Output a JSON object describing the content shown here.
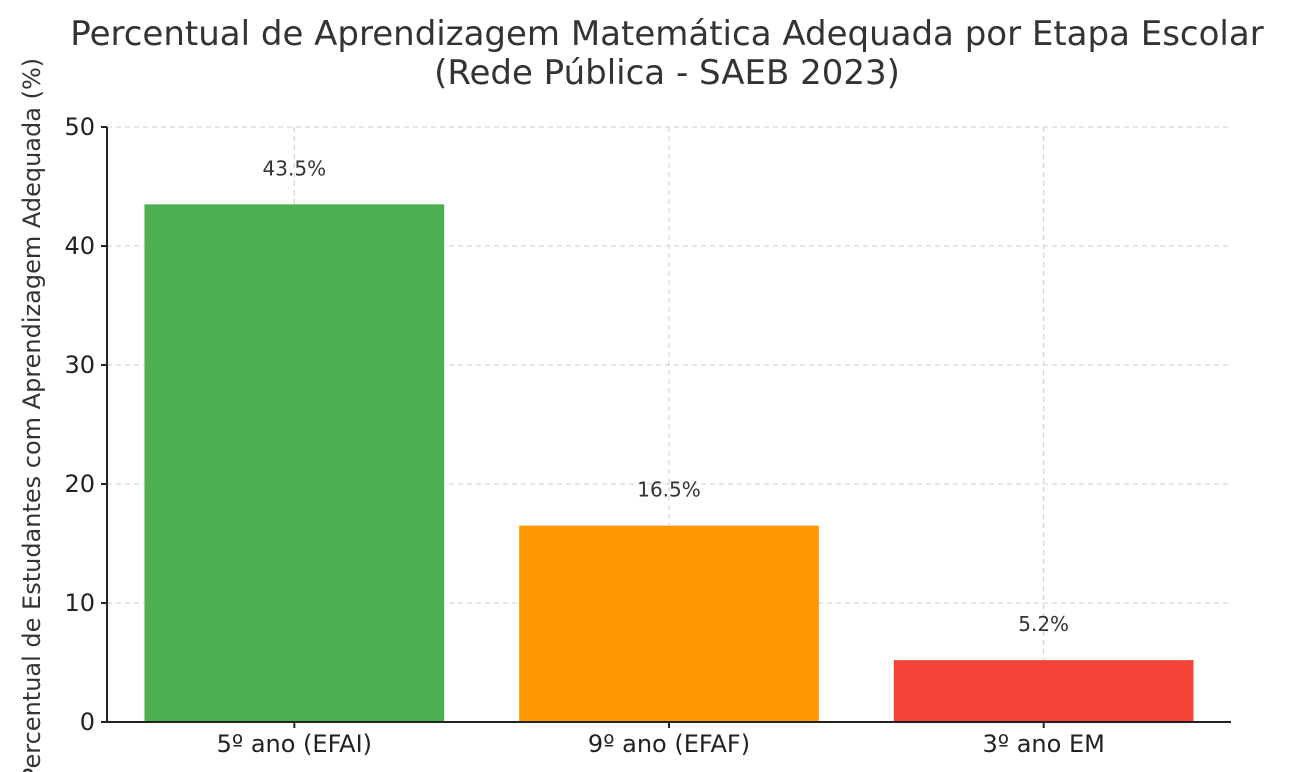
{
  "chart_data": {
    "type": "bar",
    "title": "Percentual de Aprendizagem Matemática Adequada por Etapa Escolar",
    "subtitle": "(Rede Pública - SAEB 2023)",
    "xlabel": "",
    "ylabel": "Percentual de Estudantes com Aprendizagem Adequada (%)",
    "categories": [
      "5º ano (EFAI)",
      "9º ano (EFAF)",
      "3º ano EM"
    ],
    "values": [
      43.5,
      16.5,
      5.2
    ],
    "data_labels": [
      "43.5%",
      "16.5%",
      "5.2%"
    ],
    "colors": [
      "#4caf50",
      "#ff9800",
      "#f44336"
    ],
    "ylim": [
      0,
      50
    ],
    "yticks": [
      0,
      10,
      20,
      30,
      40,
      50
    ],
    "ytick_labels": [
      "0",
      "10",
      "20",
      "30",
      "40",
      "50"
    ],
    "grid": true
  }
}
